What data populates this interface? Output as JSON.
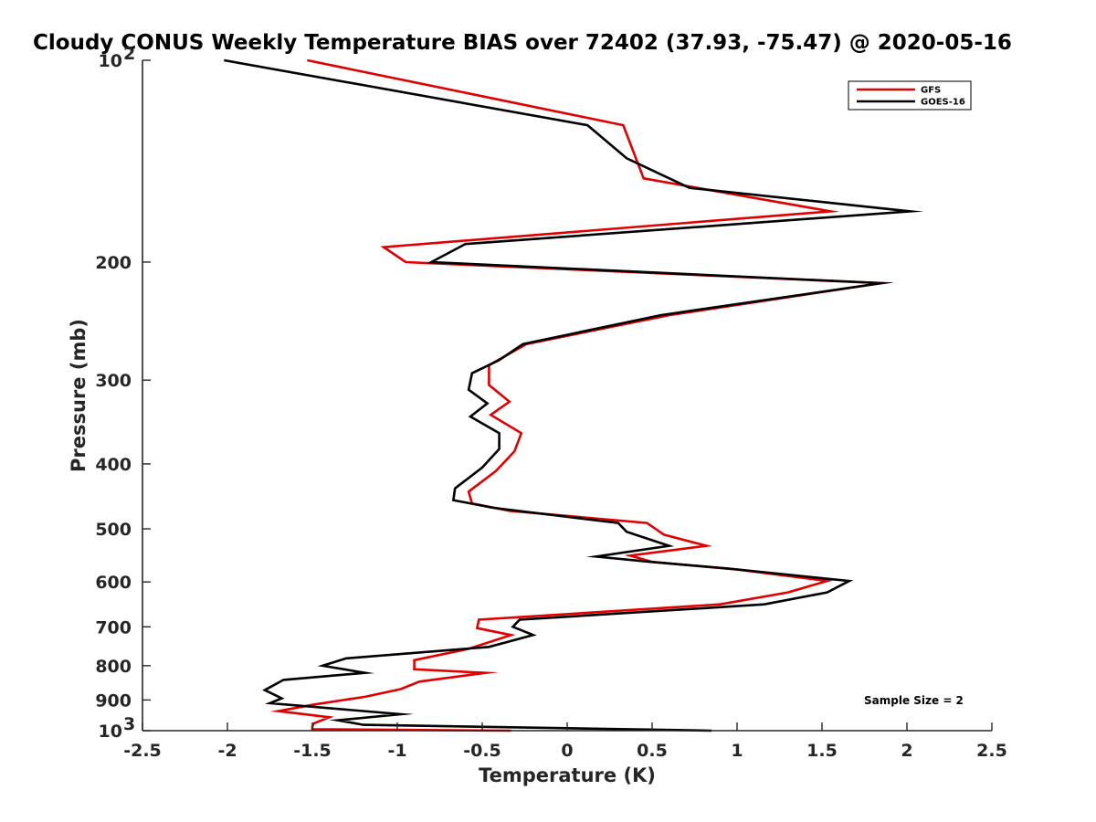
{
  "chart_data": {
    "type": "line",
    "title": "Cloudy CONUS Weekly Temperature BIAS over 72402 (37.93, -75.47) @ 2020-05-16",
    "xlabel": "Temperature (K)",
    "ylabel": "Pressure (mb)",
    "xlim": [
      -2.5,
      2.5
    ],
    "ylim": [
      1000,
      100
    ],
    "y_scale": "log",
    "x_ticks": [
      -2.5,
      -2,
      -1.5,
      -1,
      -0.5,
      0,
      0.5,
      1,
      1.5,
      2,
      2.5
    ],
    "x_tick_labels": [
      "-2.5",
      "-2",
      "-1.5",
      "-1",
      "-0.5",
      "0",
      "0.5",
      "1",
      "1.5",
      "2",
      "2.5"
    ],
    "y_ticks": [
      {
        "value": 100,
        "label": "10",
        "sup": "2"
      },
      {
        "value": 200,
        "label": "200"
      },
      {
        "value": 300,
        "label": "300"
      },
      {
        "value": 400,
        "label": "400"
      },
      {
        "value": 500,
        "label": "500"
      },
      {
        "value": 600,
        "label": "600"
      },
      {
        "value": 700,
        "label": "700"
      },
      {
        "value": 800,
        "label": "800"
      },
      {
        "value": 900,
        "label": "900"
      },
      {
        "value": 1000,
        "label": "10",
        "sup": "3"
      }
    ],
    "legend_position": "top-right",
    "annotation": "Sample Size = 2",
    "series": [
      {
        "name": "GFS",
        "color": "#e00000",
        "points": [
          [
            -1.53,
            100
          ],
          [
            0.33,
            125
          ],
          [
            0.45,
            150
          ],
          [
            1.55,
            168
          ],
          [
            -1.08,
            190
          ],
          [
            -0.95,
            200
          ],
          [
            1.85,
            215
          ],
          [
            0.6,
            240
          ],
          [
            -0.24,
            265
          ],
          [
            -0.46,
            285
          ],
          [
            -0.46,
            305
          ],
          [
            -0.34,
            323
          ],
          [
            -0.45,
            338
          ],
          [
            -0.27,
            360
          ],
          [
            -0.31,
            383
          ],
          [
            -0.42,
            410
          ],
          [
            -0.58,
            440
          ],
          [
            -0.56,
            458
          ],
          [
            -0.34,
            470
          ],
          [
            0.47,
            490
          ],
          [
            0.57,
            510
          ],
          [
            0.82,
            530
          ],
          [
            0.37,
            548
          ],
          [
            0.5,
            560
          ],
          [
            1.0,
            575
          ],
          [
            1.53,
            598
          ],
          [
            1.3,
            622
          ],
          [
            0.9,
            648
          ],
          [
            -0.52,
            683
          ],
          [
            -0.53,
            703
          ],
          [
            -0.33,
            720
          ],
          [
            -0.58,
            755
          ],
          [
            -0.9,
            785
          ],
          [
            -0.9,
            810
          ],
          [
            -0.48,
            820
          ],
          [
            -0.87,
            845
          ],
          [
            -0.98,
            867
          ],
          [
            -1.19,
            890
          ],
          [
            -1.5,
            915
          ],
          [
            -1.7,
            935
          ],
          [
            -1.4,
            955
          ],
          [
            -1.49,
            975
          ],
          [
            -1.5,
            985
          ],
          [
            -1.5,
            995
          ],
          [
            -0.33,
            1000
          ]
        ]
      },
      {
        "name": "GOES-16",
        "color": "#000000",
        "points": [
          [
            -2.02,
            100
          ],
          [
            0.12,
            125
          ],
          [
            0.35,
            140
          ],
          [
            0.72,
            155
          ],
          [
            2.02,
            168
          ],
          [
            -0.6,
            188
          ],
          [
            -0.8,
            200
          ],
          [
            1.85,
            215
          ],
          [
            0.55,
            240
          ],
          [
            -0.26,
            265
          ],
          [
            -0.4,
            280
          ],
          [
            -0.56,
            293
          ],
          [
            -0.58,
            310
          ],
          [
            -0.47,
            325
          ],
          [
            -0.57,
            340
          ],
          [
            -0.4,
            360
          ],
          [
            -0.4,
            380
          ],
          [
            -0.5,
            405
          ],
          [
            -0.66,
            435
          ],
          [
            -0.67,
            453
          ],
          [
            -0.44,
            465
          ],
          [
            0.3,
            490
          ],
          [
            0.35,
            505
          ],
          [
            0.6,
            530
          ],
          [
            0.17,
            550
          ],
          [
            0.49,
            560
          ],
          [
            0.95,
            573
          ],
          [
            1.66,
            598
          ],
          [
            1.53,
            622
          ],
          [
            1.16,
            648
          ],
          [
            -0.28,
            683
          ],
          [
            -0.32,
            700
          ],
          [
            -0.2,
            720
          ],
          [
            -0.46,
            750
          ],
          [
            -1.3,
            780
          ],
          [
            -1.44,
            800
          ],
          [
            -1.19,
            820
          ],
          [
            -1.67,
            840
          ],
          [
            -1.78,
            870
          ],
          [
            -1.68,
            895
          ],
          [
            -1.75,
            910
          ],
          [
            -0.98,
            945
          ],
          [
            -1.35,
            965
          ],
          [
            -1.2,
            980
          ],
          [
            0.85,
            1000
          ]
        ]
      }
    ]
  }
}
